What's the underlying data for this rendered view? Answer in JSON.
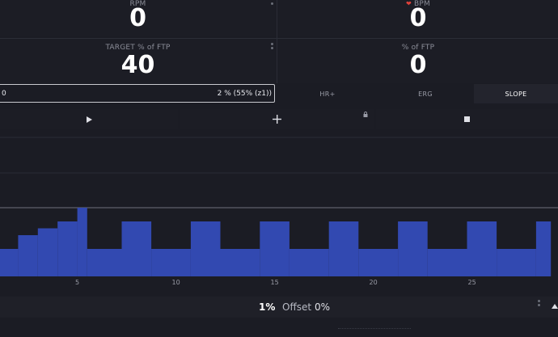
{
  "metrics": {
    "rpm": {
      "label": "RPM",
      "value": "0"
    },
    "bpm": {
      "label": "BPM",
      "value": "0"
    },
    "target_ftp": {
      "label": "TARGET % of FTP",
      "value": "40"
    },
    "pct_ftp": {
      "label": "% of FTP",
      "value": "0"
    }
  },
  "progress": {
    "left_text": "0",
    "right_text": "2 % (55% (z1))"
  },
  "modes": {
    "items": [
      "HR+",
      "ERG",
      "SLOPE"
    ],
    "active": "SLOPE"
  },
  "chart_data": {
    "type": "bar",
    "x_ticks": [
      "5",
      "10",
      "15",
      "20",
      "25"
    ],
    "xlim": [
      1,
      29
    ],
    "ylim": [
      0,
      100
    ],
    "segments": [
      {
        "start": 1,
        "end": 2,
        "value": 40
      },
      {
        "start": 2,
        "end": 3,
        "value": 60
      },
      {
        "start": 3,
        "end": 4,
        "value": 70
      },
      {
        "start": 4,
        "end": 5,
        "value": 80
      },
      {
        "start": 5,
        "end": 5.5,
        "value": 100
      },
      {
        "start": 5.5,
        "end": 7.25,
        "value": 40
      },
      {
        "start": 7.25,
        "end": 8.75,
        "value": 80
      },
      {
        "start": 8.75,
        "end": 10.75,
        "value": 40
      },
      {
        "start": 10.75,
        "end": 12.25,
        "value": 80
      },
      {
        "start": 12.25,
        "end": 14.25,
        "value": 40
      },
      {
        "start": 14.25,
        "end": 15.75,
        "value": 80
      },
      {
        "start": 15.75,
        "end": 17.75,
        "value": 40
      },
      {
        "start": 17.75,
        "end": 19.25,
        "value": 80
      },
      {
        "start": 19.25,
        "end": 21.25,
        "value": 40
      },
      {
        "start": 21.25,
        "end": 22.75,
        "value": 80
      },
      {
        "start": 22.75,
        "end": 24.75,
        "value": 40
      },
      {
        "start": 24.75,
        "end": 26.25,
        "value": 80
      },
      {
        "start": 26.25,
        "end": 28.25,
        "value": 40
      },
      {
        "start": 28.25,
        "end": 29,
        "value": 80
      }
    ],
    "target_line": 100,
    "grid": true,
    "bar_color": "#3249b1"
  },
  "footer": {
    "left_value": "1%",
    "label": "Offset",
    "right_value": "0%"
  },
  "colors": {
    "bar": "#3249b1",
    "background": "#1b1c24"
  },
  "icons": {
    "play": "play-icon",
    "add": "plus-icon",
    "stop": "stop-icon",
    "heart": "heart-icon",
    "lock": "lock-icon"
  }
}
